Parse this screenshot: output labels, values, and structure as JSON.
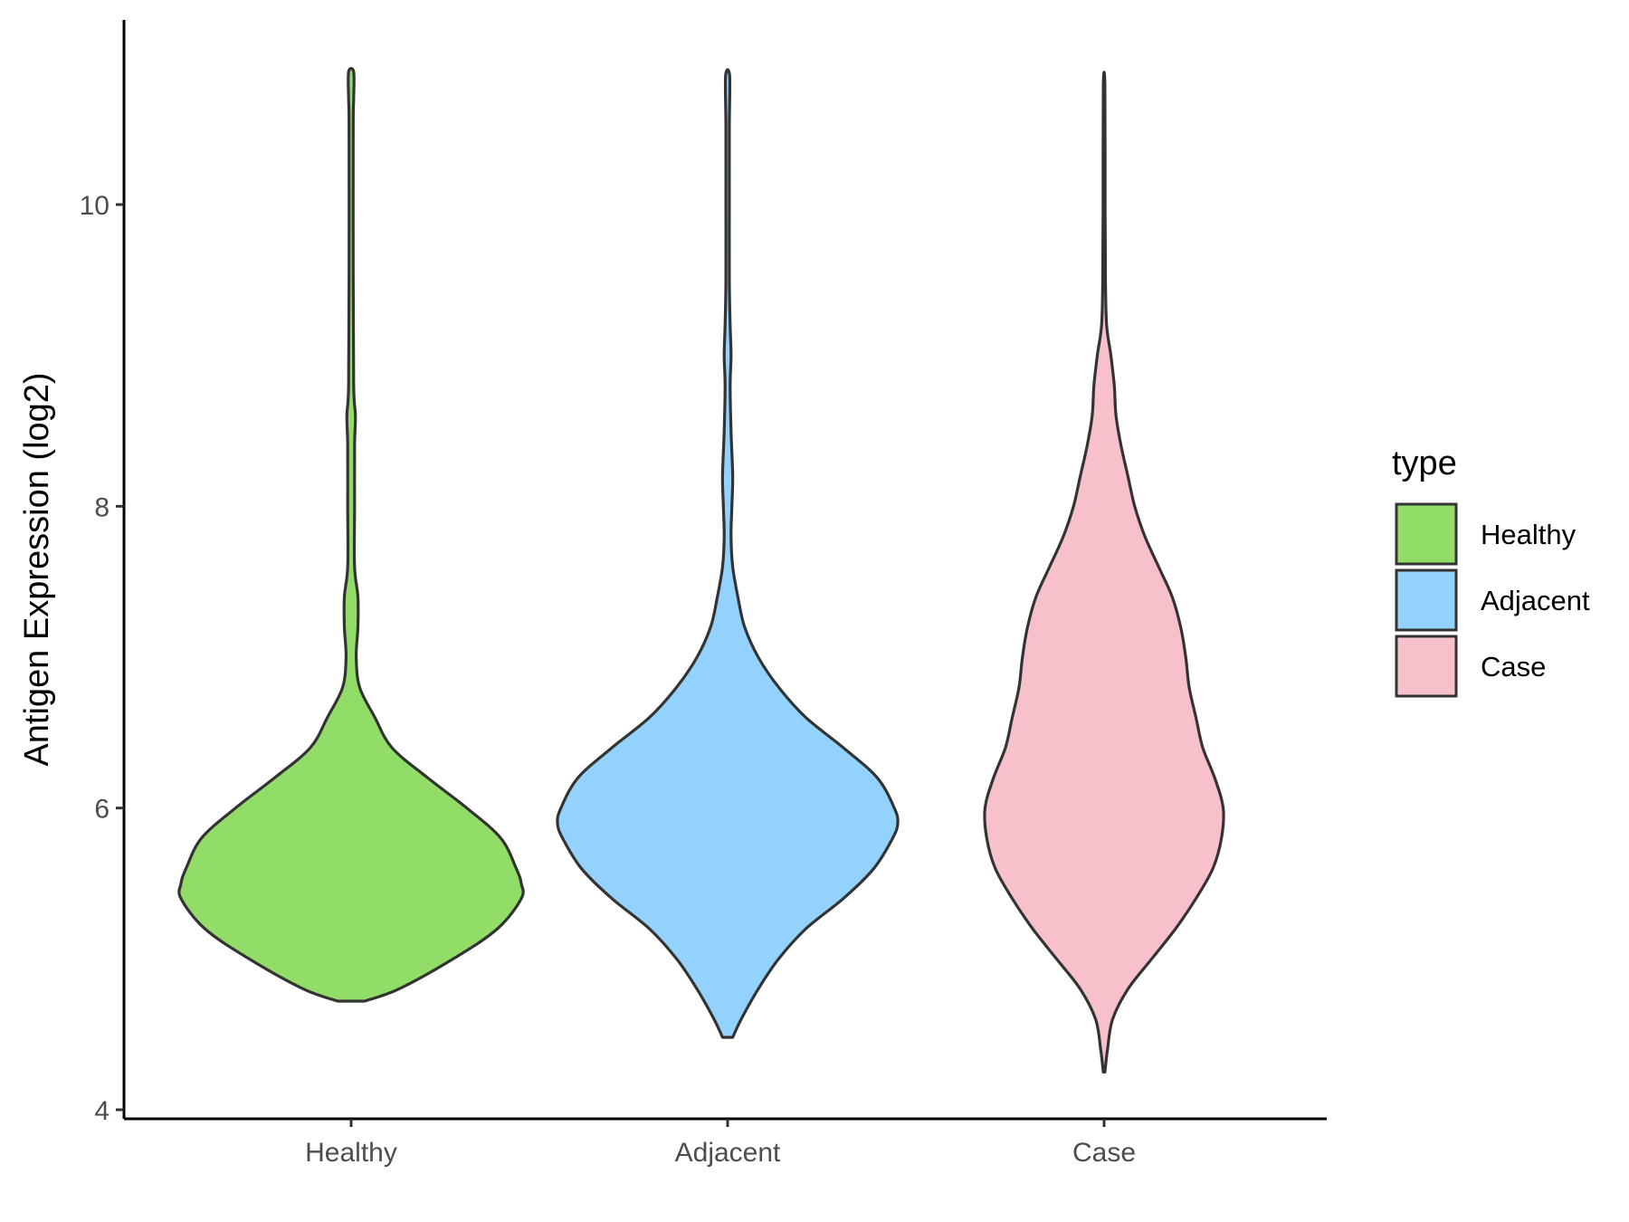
{
  "chart_data": {
    "type": "violin",
    "title": "",
    "xlabel": "",
    "ylabel": "Antigen Expression (log2)",
    "ylim": [
      3.9,
      11.2
    ],
    "yticks": [
      4,
      6,
      8,
      10
    ],
    "ytick_labels": [
      "4",
      "6",
      "8",
      "10"
    ],
    "categories": [
      "Healthy",
      "Adjacent",
      "Case"
    ],
    "grid": false,
    "legend": {
      "title": "type",
      "position": "right",
      "entries": [
        "Healthy",
        "Adjacent",
        "Case"
      ]
    },
    "series": [
      {
        "name": "Healthy",
        "color": "#92dc68",
        "min": 4.72,
        "max": 10.88,
        "density_profile": [
          [
            4.72,
            0.08
          ],
          [
            4.8,
            0.28
          ],
          [
            5.0,
            0.6
          ],
          [
            5.2,
            0.86
          ],
          [
            5.4,
            1.0
          ],
          [
            5.5,
            1.0
          ],
          [
            5.6,
            0.97
          ],
          [
            5.8,
            0.88
          ],
          [
            6.0,
            0.68
          ],
          [
            6.2,
            0.45
          ],
          [
            6.4,
            0.24
          ],
          [
            6.6,
            0.14
          ],
          [
            6.8,
            0.05
          ],
          [
            7.0,
            0.03
          ],
          [
            7.2,
            0.04
          ],
          [
            7.4,
            0.04
          ],
          [
            7.6,
            0.02
          ],
          [
            8.0,
            0.02
          ],
          [
            8.4,
            0.02
          ],
          [
            8.6,
            0.025
          ],
          [
            8.8,
            0.015
          ],
          [
            9.5,
            0.012
          ],
          [
            10.5,
            0.012
          ],
          [
            10.7,
            0.015
          ],
          [
            10.88,
            0.015
          ]
        ]
      },
      {
        "name": "Adjacent",
        "color": "#93d2fc",
        "min": 4.48,
        "max": 10.85,
        "density_profile": [
          [
            4.48,
            0.03
          ],
          [
            4.6,
            0.08
          ],
          [
            4.8,
            0.18
          ],
          [
            5.0,
            0.3
          ],
          [
            5.2,
            0.46
          ],
          [
            5.4,
            0.68
          ],
          [
            5.6,
            0.86
          ],
          [
            5.8,
            0.97
          ],
          [
            5.9,
            1.0
          ],
          [
            6.0,
            0.98
          ],
          [
            6.2,
            0.88
          ],
          [
            6.4,
            0.68
          ],
          [
            6.6,
            0.46
          ],
          [
            6.8,
            0.3
          ],
          [
            7.0,
            0.18
          ],
          [
            7.2,
            0.1
          ],
          [
            7.4,
            0.06
          ],
          [
            7.6,
            0.03
          ],
          [
            7.8,
            0.02
          ],
          [
            8.0,
            0.025
          ],
          [
            8.2,
            0.03
          ],
          [
            8.5,
            0.02
          ],
          [
            8.8,
            0.015
          ],
          [
            9.0,
            0.02
          ],
          [
            9.2,
            0.015
          ],
          [
            9.5,
            0.01
          ],
          [
            10.0,
            0.01
          ],
          [
            10.5,
            0.01
          ],
          [
            10.85,
            0.012
          ]
        ]
      },
      {
        "name": "Case",
        "color": "#f7c0cb",
        "min": 4.25,
        "max": 10.78,
        "density_profile": [
          [
            4.25,
            0.005
          ],
          [
            4.4,
            0.02
          ],
          [
            4.6,
            0.05
          ],
          [
            4.8,
            0.14
          ],
          [
            5.0,
            0.28
          ],
          [
            5.2,
            0.42
          ],
          [
            5.4,
            0.54
          ],
          [
            5.6,
            0.64
          ],
          [
            5.8,
            0.69
          ],
          [
            6.0,
            0.7
          ],
          [
            6.2,
            0.65
          ],
          [
            6.4,
            0.58
          ],
          [
            6.6,
            0.54
          ],
          [
            6.8,
            0.5
          ],
          [
            7.0,
            0.48
          ],
          [
            7.2,
            0.45
          ],
          [
            7.4,
            0.4
          ],
          [
            7.6,
            0.32
          ],
          [
            7.8,
            0.24
          ],
          [
            8.0,
            0.18
          ],
          [
            8.2,
            0.14
          ],
          [
            8.4,
            0.1
          ],
          [
            8.6,
            0.07
          ],
          [
            8.8,
            0.06
          ],
          [
            9.0,
            0.04
          ],
          [
            9.2,
            0.015
          ],
          [
            9.5,
            0.008
          ],
          [
            10.0,
            0.006
          ],
          [
            10.78,
            0.005
          ]
        ]
      }
    ]
  }
}
